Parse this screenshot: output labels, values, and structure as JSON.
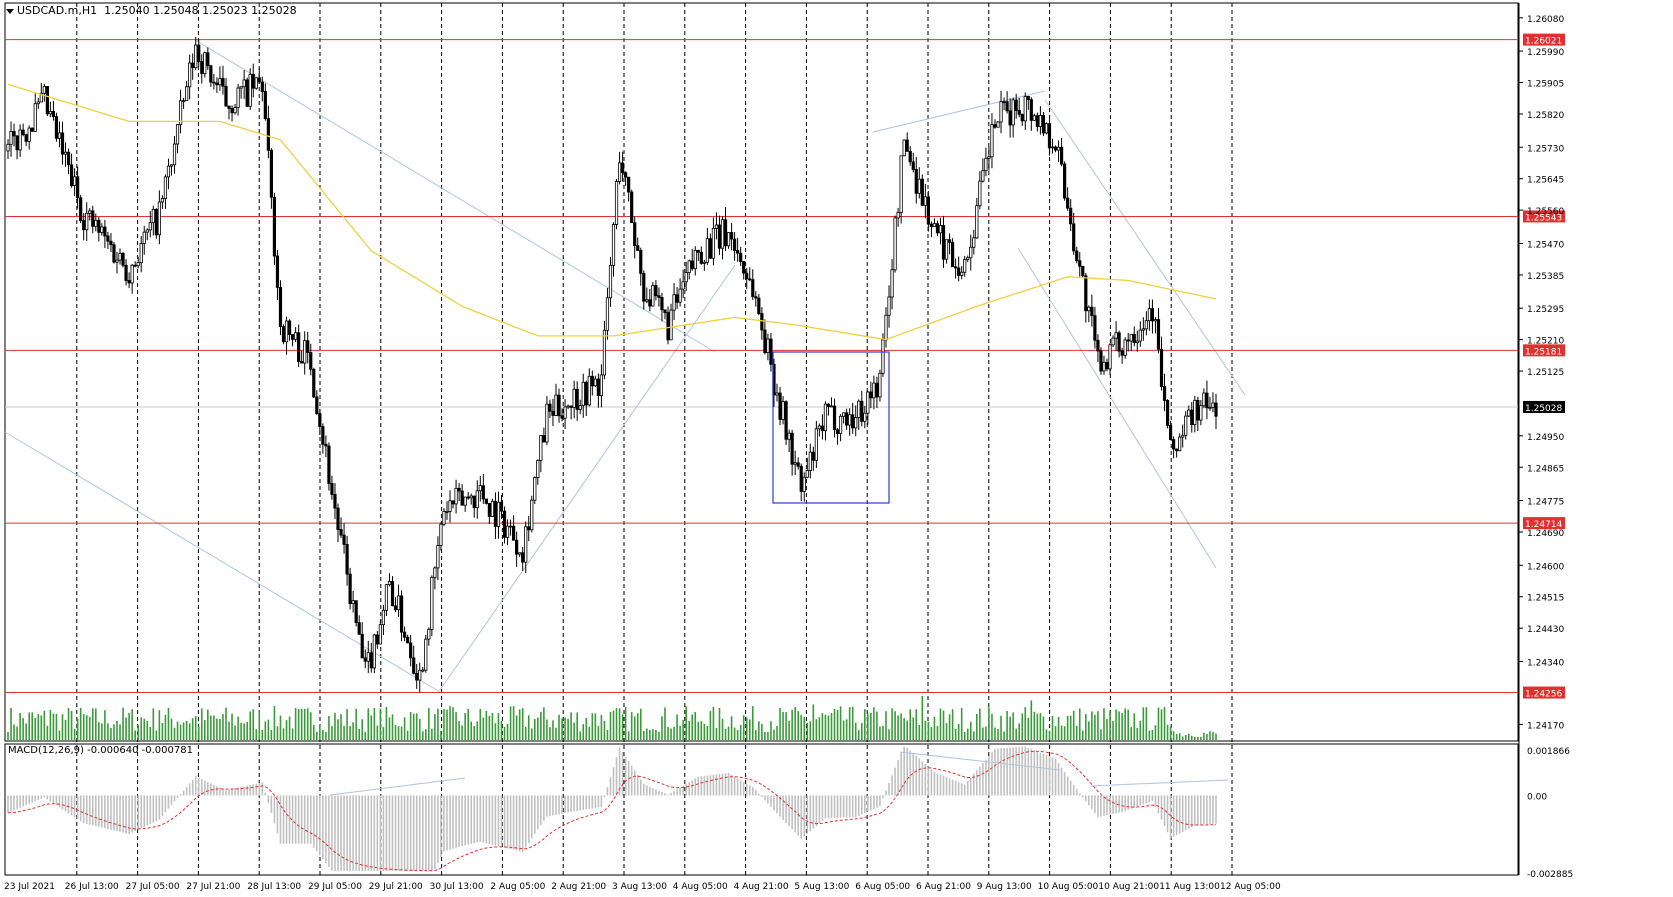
{
  "header": {
    "symbol": "USDCAD.m,H1",
    "ohlc": "1.25040 1.25048 1.25023 1.25028"
  },
  "macd_header": "MACD(12,26,9) -0.000640 -0.000781",
  "colors": {
    "background": "#ffffff",
    "candle": "#000000",
    "level_line": "#e03030",
    "ma_line": "#f0d040",
    "trend_line": "#b0c4de",
    "volume": "#3a9a3a",
    "macd_hist": "#c0c0c0",
    "macd_signal": "#e03030",
    "box": "#2b3bd6",
    "price_label_bg": "#e03030",
    "current_label_bg": "#000000"
  },
  "chart_data": {
    "type": "candlestick",
    "title": "USDCAD.m,H1",
    "price_axis_ticks": [
      "1.26080",
      "1.25990",
      "1.25905",
      "1.25820",
      "1.25730",
      "1.25645",
      "1.25560",
      "1.25470",
      "1.25385",
      "1.25295",
      "1.25210",
      "1.25125",
      "1.24950",
      "1.24865",
      "1.24775",
      "1.24690",
      "1.24600",
      "1.24515",
      "1.24430",
      "1.24340",
      "1.24170"
    ],
    "ylim": [
      1.24125,
      1.2612
    ],
    "horizontal_levels": [
      1.26021,
      1.25543,
      1.25181,
      1.24714,
      1.24256
    ],
    "horizontal_level_labels": [
      "1.26021",
      "1.25543",
      "1.25181",
      "1.24714",
      "1.24256"
    ],
    "current_price": 1.25028,
    "current_price_label": "1.25028",
    "time_labels": [
      "23 Jul 2021",
      "26 Jul 13:00",
      "27 Jul 05:00",
      "27 Jul 21:00",
      "28 Jul 13:00",
      "29 Jul 05:00",
      "29 Jul 21:00",
      "30 Jul 13:00",
      "2 Aug 05:00",
      "2 Aug 21:00",
      "3 Aug 13:00",
      "4 Aug 05:00",
      "4 Aug 21:00",
      "5 Aug 13:00",
      "6 Aug 05:00",
      "6 Aug 21:00",
      "9 Aug 13:00",
      "10 Aug 05:00",
      "10 Aug 21:00",
      "11 Aug 13:00",
      "12 Aug 05:00"
    ],
    "close_path": [
      {
        "bar": 0,
        "price": 1.2572
      },
      {
        "bar": 12,
        "price": 1.2585
      },
      {
        "bar": 25,
        "price": 1.2555
      },
      {
        "bar": 40,
        "price": 1.254
      },
      {
        "bar": 50,
        "price": 1.2555
      },
      {
        "bar": 62,
        "price": 1.26
      },
      {
        "bar": 72,
        "price": 1.2585
      },
      {
        "bar": 84,
        "price": 1.259
      },
      {
        "bar": 90,
        "price": 1.2525
      },
      {
        "bar": 100,
        "price": 1.2515
      },
      {
        "bar": 108,
        "price": 1.2475
      },
      {
        "bar": 118,
        "price": 1.243
      },
      {
        "bar": 126,
        "price": 1.2455
      },
      {
        "bar": 136,
        "price": 1.243
      },
      {
        "bar": 144,
        "price": 1.2475
      },
      {
        "bar": 156,
        "price": 1.248
      },
      {
        "bar": 170,
        "price": 1.2465
      },
      {
        "bar": 178,
        "price": 1.25
      },
      {
        "bar": 186,
        "price": 1.2505
      },
      {
        "bar": 196,
        "price": 1.251
      },
      {
        "bar": 202,
        "price": 1.2572
      },
      {
        "bar": 210,
        "price": 1.2535
      },
      {
        "bar": 218,
        "price": 1.2525
      },
      {
        "bar": 228,
        "price": 1.2545
      },
      {
        "bar": 238,
        "price": 1.255
      },
      {
        "bar": 246,
        "price": 1.2535
      },
      {
        "bar": 256,
        "price": 1.25
      },
      {
        "bar": 262,
        "price": 1.248
      },
      {
        "bar": 270,
        "price": 1.25
      },
      {
        "bar": 280,
        "price": 1.25
      },
      {
        "bar": 288,
        "price": 1.251
      },
      {
        "bar": 296,
        "price": 1.2575
      },
      {
        "bar": 306,
        "price": 1.255
      },
      {
        "bar": 316,
        "price": 1.254
      },
      {
        "bar": 326,
        "price": 1.258
      },
      {
        "bar": 336,
        "price": 1.2585
      },
      {
        "bar": 346,
        "price": 1.2575
      },
      {
        "bar": 354,
        "price": 1.254
      },
      {
        "bar": 360,
        "price": 1.2515
      },
      {
        "bar": 368,
        "price": 1.252
      },
      {
        "bar": 378,
        "price": 1.253
      },
      {
        "bar": 384,
        "price": 1.249
      },
      {
        "bar": 392,
        "price": 1.2502
      },
      {
        "bar": 399,
        "price": 1.2503
      }
    ],
    "ma_path": [
      {
        "bar": 0,
        "price": 1.259
      },
      {
        "bar": 40,
        "price": 1.258
      },
      {
        "bar": 70,
        "price": 1.258
      },
      {
        "bar": 90,
        "price": 1.2575
      },
      {
        "bar": 120,
        "price": 1.2545
      },
      {
        "bar": 150,
        "price": 1.253
      },
      {
        "bar": 175,
        "price": 1.2522
      },
      {
        "bar": 200,
        "price": 1.2522
      },
      {
        "bar": 240,
        "price": 1.2527
      },
      {
        "bar": 260,
        "price": 1.2525
      },
      {
        "bar": 290,
        "price": 1.2521
      },
      {
        "bar": 320,
        "price": 1.253
      },
      {
        "bar": 350,
        "price": 1.2538
      },
      {
        "bar": 370,
        "price": 1.2537
      },
      {
        "bar": 399,
        "price": 1.2532
      }
    ],
    "macd": {
      "ylim": [
        -0.002885,
        0.001866
      ],
      "ticks": [
        "0.001866",
        "0.00",
        "-0.002885"
      ],
      "value": -0.00064,
      "signal": -0.000781
    }
  }
}
